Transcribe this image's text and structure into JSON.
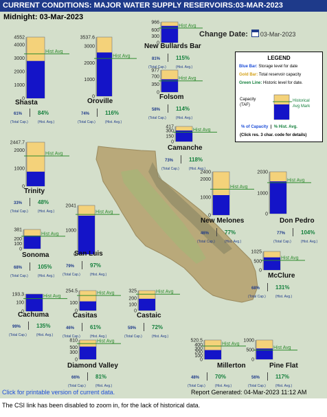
{
  "header": {
    "title": "CURRENT CONDITIONS: MAJOR WATER SUPPLY RESERVOIRS:03-MAR-2023",
    "subtitle": "Midnight: 03-Mar-2023"
  },
  "change_date": {
    "label": "Change Date:",
    "value": "03-Mar-2023"
  },
  "legend": {
    "title": "LEGEND",
    "blue_label": "Blue Bar:",
    "blue_text": "Storage level for date",
    "gold_label": "Gold Bar:",
    "gold_text": "Total reservoir capacity",
    "green_label": "Green Line:",
    "green_text": "Historic level for date.",
    "capacity_label": "Capacity\n(TAF)",
    "hist_mark_label": "Historical\nAvg Mark",
    "pct_capacity": "% of Capacity",
    "pct_hist": "% Hist. Avg.",
    "click_note": "(Click res. 3 char. code for details)"
  },
  "common": {
    "hist_avg_label": "Hist Avg",
    "total_cap_label": "(Total Cap.)",
    "hist_avg_sub": "(Hist. Avg.)"
  },
  "colors": {
    "capacity_gold": "#f4d27a",
    "storage_blue": "#1414c8",
    "hist_green": "#2e8b2e",
    "header_bg": "#1e3a8a"
  },
  "chart_data": {
    "type": "bar",
    "title": "CURRENT CONDITIONS: MAJOR WATER SUPPLY RESERVOIRS:03-MAR-2023",
    "units": "TAF",
    "reservoirs": [
      {
        "name": "Shasta",
        "capacity": 4552,
        "ticks": [
          "4552",
          "4000",
          "3000",
          "2000",
          "1000",
          "0"
        ],
        "storage_pct": 61,
        "hist_pct": 84
      },
      {
        "name": "Oroville",
        "capacity": 3537.6,
        "ticks": [
          "3537.6",
          "3000",
          "2000",
          "1000",
          "0"
        ],
        "storage_pct": 74,
        "hist_pct": 116
      },
      {
        "name": "New Bullards Bar",
        "capacity": 966,
        "ticks": [
          "966",
          "600",
          "300",
          "0"
        ],
        "storage_pct": 81,
        "hist_pct": 115
      },
      {
        "name": "Folsom",
        "capacity": 977,
        "ticks": [
          "977",
          "700",
          "350",
          "0"
        ],
        "storage_pct": 58,
        "hist_pct": 114
      },
      {
        "name": "Camanche",
        "capacity": 417,
        "ticks": [
          "417",
          "300",
          "150",
          "0"
        ],
        "storage_pct": 73,
        "hist_pct": 118
      },
      {
        "name": "Trinity",
        "capacity": 2447.7,
        "ticks": [
          "2447.7",
          "2000",
          "1000",
          "0"
        ],
        "storage_pct": 33,
        "hist_pct": 48
      },
      {
        "name": "New Melones",
        "capacity": 2400,
        "ticks": [
          "2400",
          "2000",
          "1000",
          "0"
        ],
        "storage_pct": 46,
        "hist_pct": 77
      },
      {
        "name": "Don Pedro",
        "capacity": 2030,
        "ticks": [
          "2030",
          "1000",
          "0"
        ],
        "storage_pct": 77,
        "hist_pct": 104
      },
      {
        "name": "San Luis",
        "capacity": 2041,
        "ticks": [
          "2041",
          "1000",
          "0"
        ],
        "storage_pct": 79,
        "hist_pct": 97
      },
      {
        "name": "Sonoma",
        "capacity": 381,
        "ticks": [
          "381",
          "200",
          "100",
          "0"
        ],
        "storage_pct": 68,
        "hist_pct": 105
      },
      {
        "name": "McClure",
        "capacity": 1025,
        "ticks": [
          "1025",
          "500",
          "0"
        ],
        "storage_pct": 68,
        "hist_pct": 131
      },
      {
        "name": "Cachuma",
        "capacity": 193.3,
        "ticks": [
          "193.3",
          "100",
          "0"
        ],
        "storage_pct": 99,
        "hist_pct": 135
      },
      {
        "name": "Casitas",
        "capacity": 254.5,
        "ticks": [
          "254.5",
          "100",
          "0"
        ],
        "storage_pct": 46,
        "hist_pct": 61
      },
      {
        "name": "Castaic",
        "capacity": 325,
        "ticks": [
          "325",
          "200",
          "100",
          "0"
        ],
        "storage_pct": 59,
        "hist_pct": 72
      },
      {
        "name": "Diamond Valley",
        "capacity": 810,
        "ticks": [
          "810",
          "500",
          "300",
          "0"
        ],
        "storage_pct": 66,
        "hist_pct": 81
      },
      {
        "name": "Millerton",
        "capacity": 520.5,
        "ticks": [
          "520.5",
          "400",
          "300",
          "200",
          "100",
          "0"
        ],
        "storage_pct": 48,
        "hist_pct": 70
      },
      {
        "name": "Pine Flat",
        "capacity": 1000,
        "ticks": [
          "1000",
          "500",
          "0"
        ],
        "storage_pct": 56,
        "hist_pct": 117
      }
    ]
  },
  "links": {
    "print_version": "Click for printable version of current data.",
    "report_generated": "Report Generated: 04-Mar-2023 11:12 AM",
    "footer_note": "The CSI link has been disabled to zoom in, for the lack of historical data."
  }
}
